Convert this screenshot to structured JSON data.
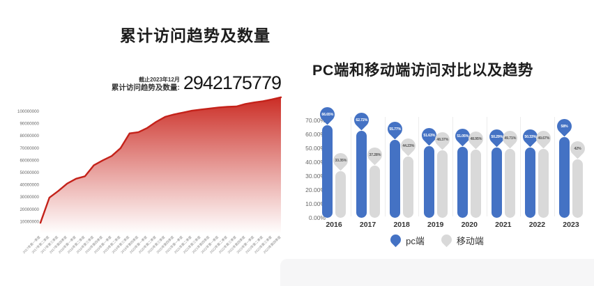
{
  "chart_data": [
    {
      "id": "cumulative-visits-area",
      "type": "area",
      "title": "累计访问趋势及数量",
      "as_of": "截止2023年12月",
      "stat_label": "累计访问趋势及数量:",
      "stat_value": "2942175779",
      "x": [
        "2017年第一季度",
        "2017年第二季度",
        "2017年第三季度",
        "2017年第四季度",
        "2018年第一季度",
        "2018年第二季度",
        "2018年第三季度",
        "2018年第四季度",
        "2019年第一季度",
        "2019年第二季度",
        "2019年第三季度",
        "2019年第四季度",
        "2020年第一季度",
        "2020年第二季度",
        "2020年第三季度",
        "2020年第四季度",
        "2021年第一季度",
        "2021年第二季度",
        "2021年第三季度",
        "2021年第四季度",
        "2022年第一季度",
        "2022年第二季度",
        "2022年第三季度",
        "2022年第四季度",
        "2023年第一季度",
        "2023年第二季度",
        "2023年第三季度",
        "2023年第四季度"
      ],
      "values": [
        9000000,
        29500000,
        35000000,
        41000000,
        45000000,
        47000000,
        56000000,
        60000000,
        63500000,
        70000000,
        82000000,
        83000000,
        86500000,
        91500000,
        95500000,
        97500000,
        99000000,
        100500000,
        101500000,
        102300000,
        103200000,
        103700000,
        104000000,
        106000000,
        107300000,
        108300000,
        109800000,
        111500000
      ],
      "yticks": [
        10000000,
        20000000,
        30000000,
        40000000,
        50000000,
        60000000,
        70000000,
        80000000,
        90000000,
        100000000
      ],
      "ylim": [
        0,
        113000000
      ],
      "grid": false,
      "line_color": "#C4221A",
      "fill_top_color": "#C9241C",
      "fill_bottom_color": "#ffffff"
    },
    {
      "id": "pc-vs-mobile-bars",
      "type": "bar",
      "title": "PC端和移动端访问对比以及趋势",
      "categories": [
        "2016",
        "2017",
        "2018",
        "2019",
        "2020",
        "2021",
        "2022",
        "2023"
      ],
      "series": [
        {
          "name": "pc端",
          "color": "#4472C4",
          "values": [
            66.65,
            62.72,
            55.77,
            51.63,
            51.05,
            50.29,
            50.33,
            58
          ],
          "labels": [
            "66.65%",
            "62.72%",
            "55.77%",
            "51.63%",
            "51.05%",
            "50.29%",
            "50.33%",
            "58%"
          ]
        },
        {
          "name": "移动端",
          "color": "#D9D9D9",
          "values": [
            33.35,
            37.28,
            44.23,
            48.37,
            48.95,
            49.71,
            49.67,
            42
          ],
          "labels": [
            "33.35%",
            "37.28%",
            "44.23%",
            "48.37%",
            "48.95%",
            "49.71%",
            "49.67%",
            "42%"
          ]
        }
      ],
      "yticks": [
        "70.00%",
        "60.00%",
        "50.00%",
        "40.00%",
        "30.00%",
        "20.00%",
        "10.00%",
        "0.00%"
      ],
      "ylim": [
        0,
        70
      ],
      "grid": false,
      "legend_position": "bottom"
    }
  ]
}
